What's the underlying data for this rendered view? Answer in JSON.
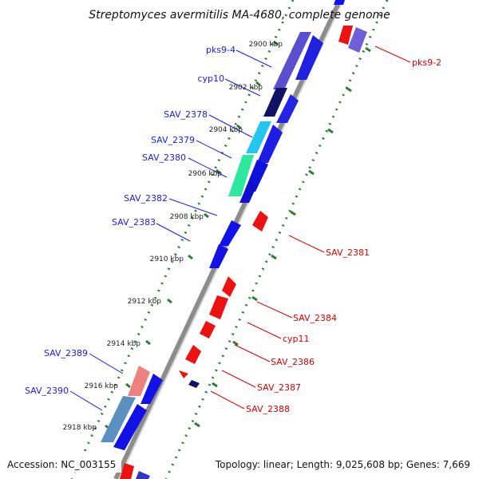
{
  "title": "Streptomyces avermitilis MA-4680, complete genome",
  "footer": {
    "accession": "Accession: NC_003155",
    "summary": "Topology: linear; Length: 9,025,608 bp; Genes: 7,669"
  },
  "colors": {
    "backbone": "#8c8c8c",
    "tick": "#2e7d32",
    "forward_label": "#1a1aff",
    "reverse_label": "#e00000",
    "forward_gene": "#1010ee",
    "reverse_gene": "#ee1111"
  },
  "ticks": [
    {
      "label": "2900 kbp"
    },
    {
      "label": "2902 kbp"
    },
    {
      "label": "2904 kbp"
    },
    {
      "label": "2906 kbp"
    },
    {
      "label": "2908 kbp"
    },
    {
      "label": "2910 kbp"
    },
    {
      "label": "2912 kbp"
    },
    {
      "label": "2914 kbp"
    },
    {
      "label": "2916 kbp"
    },
    {
      "label": "2918 kbp"
    }
  ],
  "gene_labels_forward": [
    {
      "name": "pks9-4"
    },
    {
      "name": "cyp10"
    },
    {
      "name": "SAV_2378"
    },
    {
      "name": "SAV_2379"
    },
    {
      "name": "SAV_2380"
    },
    {
      "name": "SAV_2382"
    },
    {
      "name": "SAV_2383"
    },
    {
      "name": "SAV_2389"
    },
    {
      "name": "SAV_2390"
    }
  ],
  "gene_labels_reverse": [
    {
      "name": "pks9-2"
    },
    {
      "name": "SAV_2381"
    },
    {
      "name": "SAV_2384"
    },
    {
      "name": "cyp11"
    },
    {
      "name": "SAV_2386"
    },
    {
      "name": "SAV_2387"
    },
    {
      "name": "SAV_2388"
    }
  ]
}
